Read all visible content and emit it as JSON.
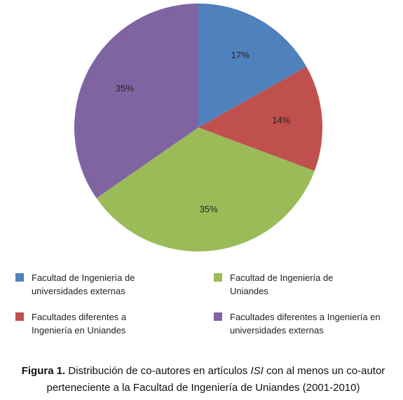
{
  "chart_data": {
    "type": "pie",
    "categories": [
      "Facultad de Ingeniería de universidades externas",
      "Facultades diferentes a Ingeniería en Uniandes",
      "Facultad de Ingeniería de Uniandes",
      "Facultades diferentes a Ingeniería en universidades externas"
    ],
    "values": [
      17,
      14,
      35,
      35
    ],
    "value_labels": [
      "17%",
      "14%",
      "35%",
      "35%"
    ],
    "colors": [
      "#4f81bd",
      "#c0504d",
      "#9bbb59",
      "#8064a2"
    ]
  },
  "caption": {
    "label": "Figura 1.",
    "text_before": " Distribución de co-autores en artículos ",
    "emphasis": "ISI",
    "text_after": " con al menos un co-autor perteneciente a la Facultad de Ingeniería de Uniandes (2001-2010)"
  }
}
